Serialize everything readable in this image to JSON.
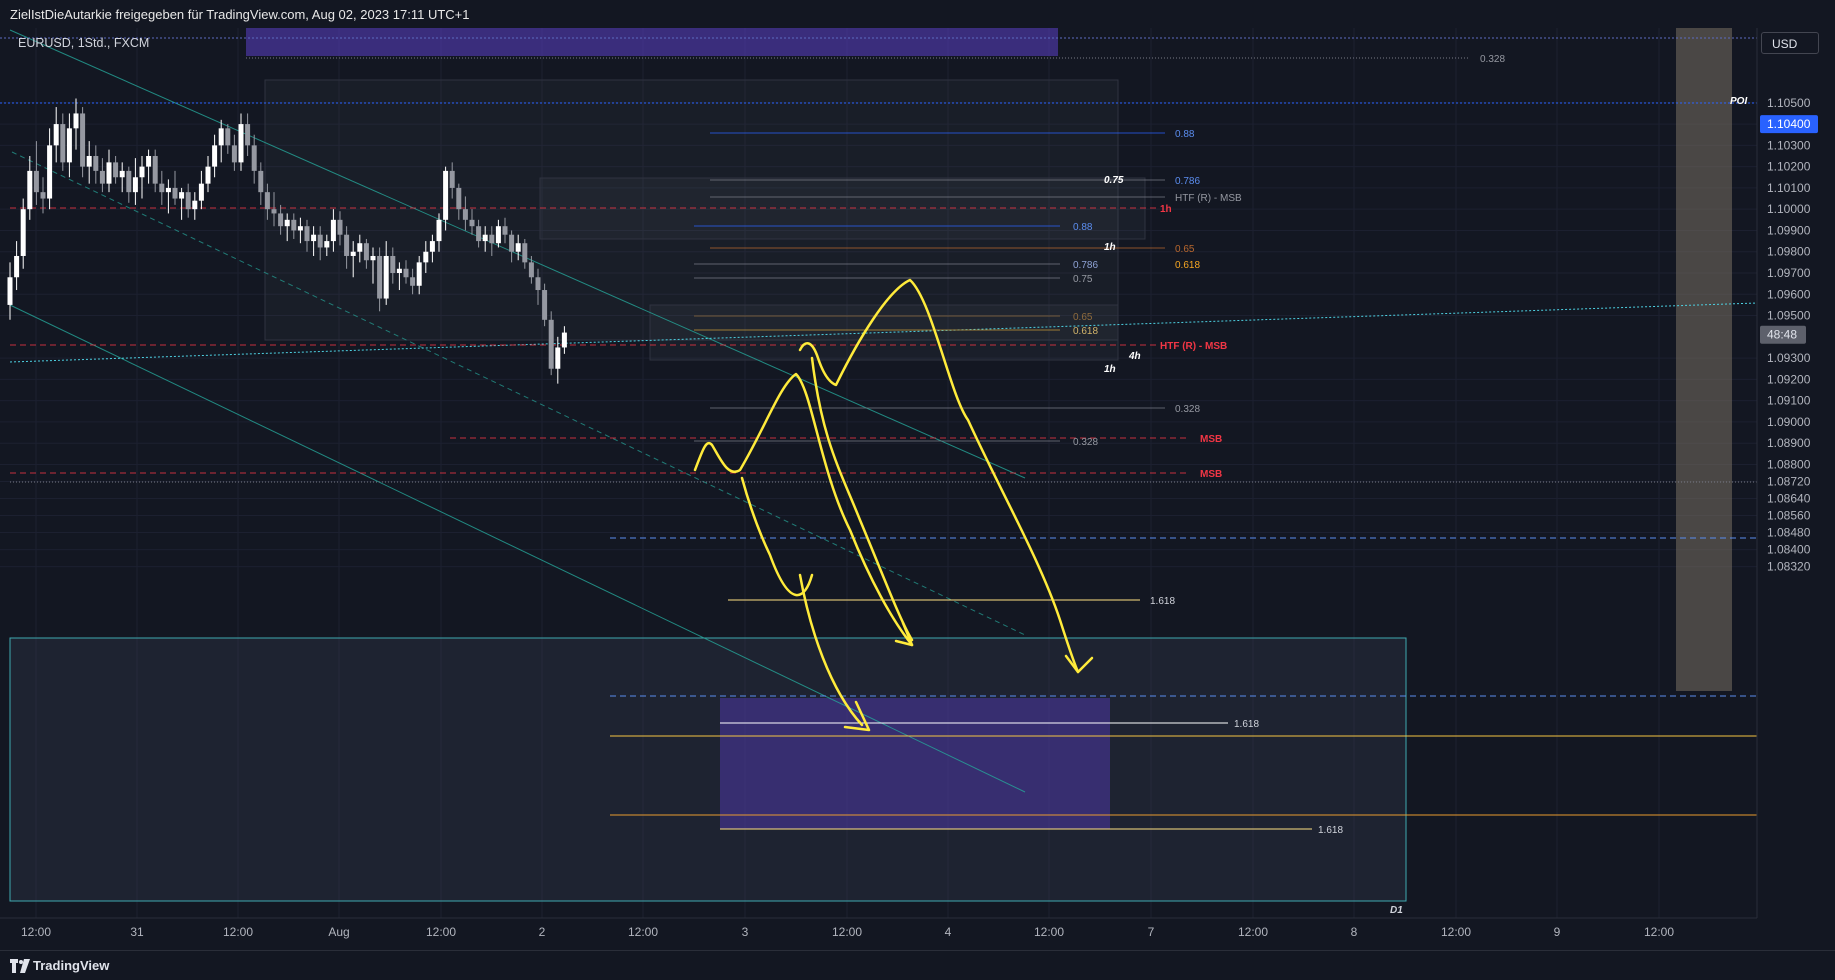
{
  "header": {
    "share_text": "ZielIstDieAutarkie freigegeben für TradingView.com, Aug 02, 2023 17:11 UTC+1"
  },
  "symbol": {
    "label": "EURUSD, 1Std., FXCM"
  },
  "currency_button": {
    "label": "USD"
  },
  "poi_label": "POI",
  "footer": {
    "brand": "TradingView"
  },
  "colors": {
    "background": "#131722",
    "candle_up": "#ffffff",
    "candle_down": "#9598a1",
    "msb_red": "#f23645",
    "drawing_yellow": "#ffeb3b",
    "trendline_teal": "#26a69a",
    "zone_purple": "#5b3fc7",
    "price_tag_blue": "#2962ff"
  },
  "chart_data": {
    "type": "candlestick",
    "y_axis": {
      "ylim": [
        1.0829,
        1.1057
      ],
      "tick_labels": [
        "1.10500",
        "1.10400",
        "1.10300",
        "1.10200",
        "1.10100",
        "1.10000",
        "1.09900",
        "1.09800",
        "1.09700",
        "1.09600",
        "1.09500",
        "1.09300",
        "1.09200",
        "1.09100",
        "1.09000",
        "1.08900",
        "1.08800",
        "1.08720",
        "1.08640",
        "1.08560",
        "1.08480",
        "1.08400",
        "1.08320"
      ],
      "tick_values": [
        1.105,
        1.104,
        1.103,
        1.102,
        1.101,
        1.1,
        1.099,
        1.098,
        1.097,
        1.096,
        1.095,
        1.093,
        1.092,
        1.091,
        1.09,
        1.089,
        1.088,
        1.0872,
        1.0864,
        1.0856,
        1.0848,
        1.084,
        1.0832
      ]
    },
    "x_axis": {
      "tick_labels": [
        "12:00",
        "31",
        "12:00",
        "Aug",
        "12:00",
        "2",
        "12:00",
        "3",
        "12:00",
        "4",
        "12:00",
        "7",
        "12:00",
        "8",
        "12:00",
        "9",
        "12:00"
      ]
    },
    "price_tags": [
      {
        "label": "1.10400",
        "value": 1.104
      },
      {
        "label": "48:48",
        "value": 1.0941
      }
    ],
    "candles": [
      [
        1.0955,
        1.0975,
        1.0948,
        1.0968
      ],
      [
        1.0968,
        1.0985,
        1.0962,
        1.0978
      ],
      [
        1.0978,
        1.1005,
        1.0972,
        1.1
      ],
      [
        1.1,
        1.1025,
        1.0995,
        1.1018
      ],
      [
        1.1018,
        1.1032,
        1.1002,
        1.1008
      ],
      [
        1.1008,
        1.1015,
        1.0998,
        1.1005
      ],
      [
        1.1005,
        1.1038,
        1.1,
        1.103
      ],
      [
        1.103,
        1.1048,
        1.1022,
        1.104
      ],
      [
        1.104,
        1.1045,
        1.1018,
        1.1022
      ],
      [
        1.1022,
        1.1045,
        1.1015,
        1.1038
      ],
      [
        1.1038,
        1.1052,
        1.1028,
        1.1045
      ],
      [
        1.1045,
        1.1048,
        1.1015,
        1.102
      ],
      [
        1.102,
        1.1032,
        1.1012,
        1.1025
      ],
      [
        1.1025,
        1.103,
        1.1012,
        1.1018
      ],
      [
        1.1018,
        1.1024,
        1.1008,
        1.1012
      ],
      [
        1.1012,
        1.1028,
        1.1008,
        1.1022
      ],
      [
        1.1022,
        1.1025,
        1.1012,
        1.1015
      ],
      [
        1.1015,
        1.1022,
        1.1008,
        1.1018
      ],
      [
        1.1018,
        1.102,
        1.1003,
        1.1008
      ],
      [
        1.1008,
        1.1024,
        1.1002,
        1.1015
      ],
      [
        1.1015,
        1.1025,
        1.1005,
        1.102
      ],
      [
        1.102,
        1.1028,
        1.1012,
        1.1025
      ],
      [
        1.1025,
        1.1028,
        1.1008,
        1.1012
      ],
      [
        1.1012,
        1.1018,
        1.1002,
        1.1008
      ],
      [
        1.1008,
        1.1014,
        1.0998,
        1.101
      ],
      [
        1.101,
        1.1018,
        1.1002,
        1.1005
      ],
      [
        1.1005,
        1.101,
        1.0995,
        1.1008
      ],
      [
        1.1008,
        1.1012,
        1.0996,
        1.1
      ],
      [
        1.1,
        1.1008,
        1.0995,
        1.1004
      ],
      [
        1.1004,
        1.1018,
        1.1,
        1.1012
      ],
      [
        1.1012,
        1.1025,
        1.1008,
        1.102
      ],
      [
        1.102,
        1.1035,
        1.1015,
        1.103
      ],
      [
        1.103,
        1.1042,
        1.1022,
        1.1038
      ],
      [
        1.1038,
        1.104,
        1.1026,
        1.103
      ],
      [
        1.103,
        1.1035,
        1.1018,
        1.1022
      ],
      [
        1.1022,
        1.1045,
        1.1018,
        1.104
      ],
      [
        1.104,
        1.1045,
        1.1025,
        1.103
      ],
      [
        1.103,
        1.1035,
        1.1012,
        1.1018
      ],
      [
        1.1018,
        1.1022,
        1.1002,
        1.1008
      ],
      [
        1.1008,
        1.1012,
        1.0995,
        1.1
      ],
      [
        1.1,
        1.1008,
        1.0992,
        1.0998
      ],
      [
        1.0998,
        1.1002,
        1.0988,
        1.0992
      ],
      [
        1.0992,
        1.0998,
        1.0985,
        1.0995
      ],
      [
        1.0995,
        1.0998,
        1.0986,
        1.099
      ],
      [
        1.099,
        1.0996,
        1.0984,
        1.0992
      ],
      [
        1.0992,
        1.0995,
        1.098,
        1.0985
      ],
      [
        1.0985,
        1.0992,
        1.0978,
        1.0988
      ],
      [
        1.0988,
        1.0992,
        1.0976,
        1.0982
      ],
      [
        1.0982,
        1.0988,
        1.0978,
        1.0985
      ],
      [
        1.0985,
        1.1,
        1.098,
        1.0995
      ],
      [
        1.0995,
        1.0999,
        1.0983,
        1.0988
      ],
      [
        1.0988,
        1.0992,
        1.0972,
        1.0978
      ],
      [
        1.0978,
        1.0985,
        1.0968,
        1.098
      ],
      [
        1.098,
        1.0988,
        1.0975,
        1.0984
      ],
      [
        1.0984,
        1.0986,
        1.0972,
        1.0976
      ],
      [
        1.0976,
        1.0982,
        1.0965,
        1.0978
      ],
      [
        1.0978,
        1.0982,
        1.0952,
        1.0958
      ],
      [
        1.0958,
        1.0985,
        1.0955,
        1.0978
      ],
      [
        1.0978,
        1.0982,
        1.0965,
        1.097
      ],
      [
        1.097,
        1.0975,
        1.0962,
        1.0972
      ],
      [
        1.0972,
        1.0976,
        1.0965,
        1.0968
      ],
      [
        1.0968,
        1.0972,
        1.096,
        1.0964
      ],
      [
        1.0964,
        1.0978,
        1.096,
        1.0975
      ],
      [
        1.0975,
        1.0985,
        1.097,
        1.098
      ],
      [
        1.098,
        1.0988,
        1.0975,
        1.0985
      ],
      [
        1.0985,
        1.0998,
        1.098,
        1.0995
      ],
      [
        1.0995,
        1.102,
        1.099,
        1.1018
      ],
      [
        1.1018,
        1.1022,
        1.1005,
        1.101
      ],
      [
        1.101,
        1.1012,
        1.0995,
        1.1
      ],
      [
        1.1,
        1.1006,
        1.099,
        1.0995
      ],
      [
        1.0995,
        1.1,
        1.0988,
        1.0992
      ],
      [
        1.0992,
        1.0995,
        1.0982,
        1.0985
      ],
      [
        1.0985,
        1.0992,
        1.098,
        1.0988
      ],
      [
        1.0988,
        1.0992,
        1.0978,
        1.0984
      ],
      [
        1.0984,
        1.0995,
        1.0982,
        1.0992
      ],
      [
        1.0992,
        1.0996,
        1.0984,
        1.0988
      ],
      [
        1.0988,
        1.099,
        1.0975,
        1.098
      ],
      [
        1.098,
        1.0988,
        1.0976,
        1.0984
      ],
      [
        1.0984,
        1.0986,
        1.0972,
        1.0975
      ],
      [
        1.0975,
        1.0978,
        1.0965,
        1.0968
      ],
      [
        1.0968,
        1.0972,
        1.0955,
        1.0962
      ],
      [
        1.0962,
        1.0965,
        1.0945,
        1.0948
      ],
      [
        1.0948,
        1.0952,
        1.0922,
        1.0925
      ],
      [
        1.0925,
        1.094,
        1.0918,
        1.0935
      ],
      [
        1.0935,
        1.0945,
        1.0932,
        1.0942
      ]
    ],
    "levels": [
      {
        "label": "0.328",
        "value": 1.1053
      },
      {
        "label": "0.88",
        "value": 1.1034
      },
      {
        "label": "0.786",
        "value": 1.1021
      },
      {
        "label": "0.75",
        "value": 1.1016
      },
      {
        "label": "HTF (R) - MSB",
        "value": 1.1012
      },
      {
        "label": "1h",
        "value": 1.102
      },
      {
        "label": "0.88",
        "value": 1.1005
      },
      {
        "label": "1h",
        "value": 1.0997
      },
      {
        "label": "0.65",
        "value": 1.0997
      },
      {
        "label": "0.786",
        "value": 1.0993
      },
      {
        "label": "0.618",
        "value": 1.0993
      },
      {
        "label": "0.75",
        "value": 1.0989
      },
      {
        "label": "0.65",
        "value": 1.0982
      },
      {
        "label": "0.618",
        "value": 1.0979
      },
      {
        "label": "HTF (R) - MSB",
        "value": 1.0977
      },
      {
        "label": "4h",
        "value": 1.0974
      },
      {
        "label": "1h",
        "value": 1.097
      },
      {
        "label": "0.328",
        "value": 1.096
      },
      {
        "label": "0.328",
        "value": 1.0951
      },
      {
        "label": "MSB",
        "value": 1.0952
      },
      {
        "label": "MSB",
        "value": 1.0943
      },
      {
        "label": "1.618",
        "value": 1.0909
      },
      {
        "label": "1.618",
        "value": 1.0877
      },
      {
        "label": "1.618",
        "value": 1.0849
      },
      {
        "label": "D1",
        "value": 1.0831
      }
    ]
  }
}
